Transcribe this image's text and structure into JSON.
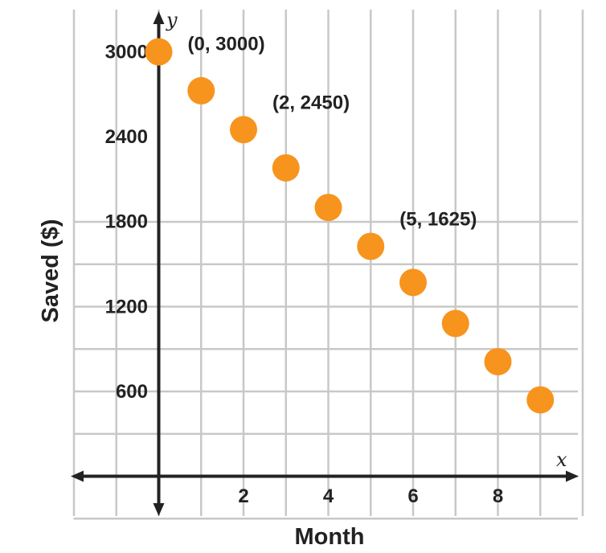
{
  "chart_data": {
    "type": "scatter",
    "xlabel": "Month",
    "ylabel": "Saved ($)",
    "x_axis_letter": "x",
    "y_axis_letter": "y",
    "xlim": [
      -2,
      10
    ],
    "ylim": [
      -1000,
      3400
    ],
    "x_ticks": [
      2,
      4,
      6,
      8
    ],
    "y_ticks": [
      600,
      1200,
      1800,
      2400,
      3000
    ],
    "grid": true,
    "series": [
      {
        "x": [
          0,
          1,
          2,
          3,
          4,
          5,
          6,
          7,
          8,
          9
        ],
        "y": [
          3000,
          2725,
          2450,
          2180,
          1900,
          1625,
          1370,
          1080,
          810,
          540
        ]
      }
    ],
    "annotations": [
      {
        "text": "(0, 3000)",
        "x": 0,
        "y": 3000
      },
      {
        "text": "(2, 2450)",
        "x": 2,
        "y": 2450
      },
      {
        "text": "(5, 1625)",
        "x": 5,
        "y": 1625
      }
    ],
    "colors": {
      "point": "#F7941D",
      "grid": "#c8c8c8",
      "axis": "#222222"
    }
  }
}
